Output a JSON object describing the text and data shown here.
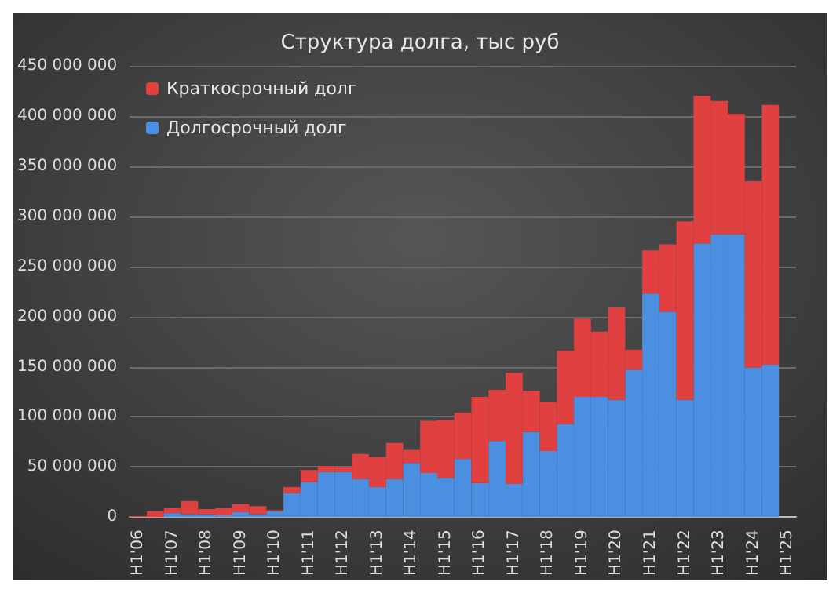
{
  "chart_data": {
    "type": "bar",
    "title": "Структура долга, тыс руб",
    "stacked": true,
    "grid": "y",
    "legend": "top left",
    "categories": [
      "H1'06",
      null,
      "H1'07",
      null,
      "H1'08",
      null,
      "H1'09",
      null,
      "H1'10",
      null,
      "H1'11",
      null,
      "H1'12",
      null,
      "H1'13",
      null,
      "H1'14",
      null,
      "H1'15",
      null,
      "H1'16",
      null,
      "H1'17",
      null,
      "H1'18",
      null,
      "H1'19",
      null,
      "H1'20",
      null,
      "H1'21",
      null,
      "H1'22",
      null,
      "H1'23",
      null,
      "H1'24",
      null,
      "H1'25"
    ],
    "series": [
      {
        "name": "Долгосрочный долг",
        "color": "#4a8fe0",
        "values": [
          0,
          0,
          4000000,
          3000000,
          3000000,
          2000000,
          5000000,
          3000000,
          6000000,
          24000000,
          35000000,
          45000000,
          45000000,
          38000000,
          30000000,
          38000000,
          54000000,
          44000000,
          39000000,
          58000000,
          34000000,
          76000000,
          33000000,
          85000000,
          66000000,
          93000000,
          120000000,
          120000000,
          117000000,
          147000000,
          223000000,
          205000000,
          117000000,
          273000000,
          282000000,
          282000000,
          149000000,
          152000000,
          null
        ]
      },
      {
        "name": "Краткосрочный долг",
        "color": "#e04040",
        "values": [
          1000000,
          6000000,
          5000000,
          13000000,
          5000000,
          7000000,
          8000000,
          8000000,
          1000000,
          6000000,
          12000000,
          6000000,
          5000000,
          25000000,
          30000000,
          36000000,
          13000000,
          52000000,
          58000000,
          46000000,
          86000000,
          51000000,
          111000000,
          41000000,
          49000000,
          73000000,
          78000000,
          65000000,
          92000000,
          20000000,
          43000000,
          67000000,
          178000000,
          147000000,
          133000000,
          120000000,
          186000000,
          259000000,
          null
        ]
      }
    ],
    "ylim": [
      0,
      450000000
    ],
    "yticks": [
      {
        "value": 0,
        "label": "0"
      },
      {
        "value": 50000000,
        "label": "50 000 000"
      },
      {
        "value": 100000000,
        "label": "100 000 000"
      },
      {
        "value": 150000000,
        "label": "150 000 000"
      },
      {
        "value": 200000000,
        "label": "200 000 000"
      },
      {
        "value": 250000000,
        "label": "250 000 000"
      },
      {
        "value": 300000000,
        "label": "300 000 000"
      },
      {
        "value": 350000000,
        "label": "350 000 000"
      },
      {
        "value": 400000000,
        "label": "400 000 000"
      },
      {
        "value": 450000000,
        "label": "450 000 000"
      }
    ]
  }
}
